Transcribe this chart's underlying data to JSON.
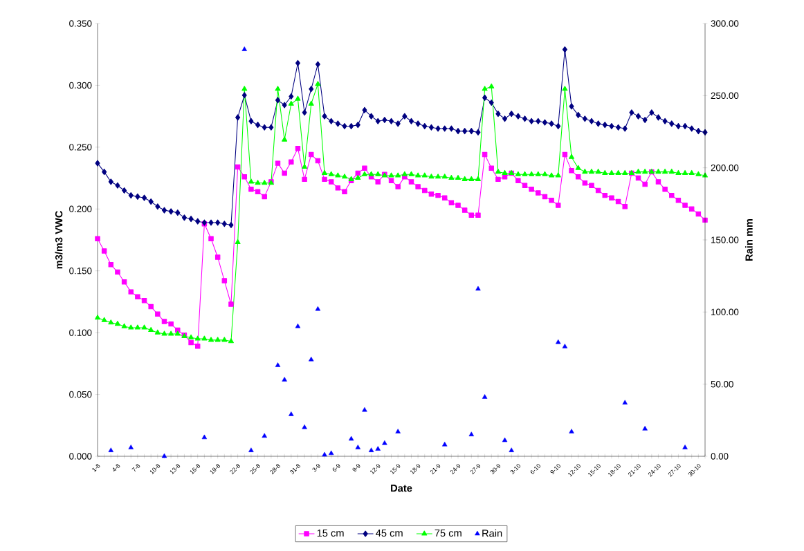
{
  "chart_data": {
    "type": "line",
    "xlabel": "Date",
    "ylabel": "m3/m3 VWC",
    "y2label": "Rain mm",
    "legend": "bottom",
    "categories": [
      "1-8",
      null,
      null,
      "4-8",
      null,
      null,
      "7-8",
      null,
      null,
      "10-8",
      null,
      null,
      "13-8",
      null,
      null,
      "16-8",
      null,
      null,
      "19-8",
      null,
      null,
      "22-8",
      null,
      null,
      "25-8",
      null,
      null,
      "28-8",
      null,
      null,
      "31-8",
      null,
      null,
      "3-9",
      null,
      null,
      "6-9",
      null,
      null,
      "9-9",
      null,
      null,
      "12-9",
      null,
      null,
      "15-9",
      null,
      null,
      "18-9",
      null,
      null,
      "21-9",
      null,
      null,
      "24-9",
      null,
      null,
      "27-9",
      null,
      null,
      "30-9",
      null,
      null,
      "3-10",
      null,
      null,
      "6-10",
      null,
      null,
      "9-10",
      null,
      null,
      "12-10",
      null,
      null,
      "15-10",
      null,
      null,
      "18-10",
      null,
      null,
      "21-10",
      null,
      null,
      "24-10",
      null,
      null,
      "27-10",
      null,
      null,
      "30-10",
      null
    ],
    "ylim": [
      0,
      0.35
    ],
    "yticks": [
      {
        "value": 0,
        "label": "0.000"
      },
      {
        "value": 0.05,
        "label": "0.050"
      },
      {
        "value": 0.1,
        "label": "0.100"
      },
      {
        "value": 0.15,
        "label": "0.150"
      },
      {
        "value": 0.2,
        "label": "0.200"
      },
      {
        "value": 0.25,
        "label": "0.250"
      },
      {
        "value": 0.3,
        "label": "0.300"
      },
      {
        "value": 0.35,
        "label": "0.350"
      }
    ],
    "y2lim": [
      0,
      300
    ],
    "y2ticks": [
      {
        "value": 0,
        "label": "0.00"
      },
      {
        "value": 50,
        "label": "50.00"
      },
      {
        "value": 100,
        "label": "100.00"
      },
      {
        "value": 150,
        "label": "150.00"
      },
      {
        "value": 200,
        "label": "200.00"
      },
      {
        "value": 250,
        "label": "250.00"
      },
      {
        "value": 300,
        "label": "300.00"
      }
    ],
    "series": [
      {
        "name": "15 cm",
        "color": "#ff00ff",
        "marker": "square",
        "values": [
          0.176,
          0.166,
          0.155,
          0.149,
          0.141,
          0.133,
          0.129,
          0.126,
          0.121,
          0.115,
          0.109,
          0.107,
          0.102,
          0.098,
          0.092,
          0.089,
          0.188,
          0.176,
          0.161,
          0.142,
          0.123,
          0.234,
          0.226,
          0.216,
          0.214,
          0.21,
          0.222,
          0.237,
          0.229,
          0.238,
          0.249,
          0.224,
          0.244,
          0.239,
          0.224,
          0.222,
          0.217,
          0.214,
          0.223,
          0.229,
          0.233,
          0.226,
          0.222,
          0.228,
          0.223,
          0.218,
          0.226,
          0.222,
          0.218,
          0.215,
          0.212,
          0.211,
          0.209,
          0.205,
          0.203,
          0.199,
          0.195,
          0.195,
          0.244,
          0.233,
          0.224,
          0.226,
          0.229,
          0.223,
          0.219,
          0.216,
          0.213,
          0.21,
          0.207,
          0.203,
          0.244,
          0.231,
          0.226,
          0.221,
          0.219,
          0.215,
          0.211,
          0.209,
          0.206,
          0.202,
          0.229,
          0.225,
          0.22,
          0.23,
          0.222,
          0.216,
          0.211,
          0.207,
          0.203,
          0.2,
          0.196,
          0.191
        ]
      },
      {
        "name": "45 cm",
        "color": "#000080",
        "marker": "diamond",
        "values": [
          0.237,
          0.23,
          0.222,
          0.219,
          0.215,
          0.211,
          0.21,
          0.209,
          0.206,
          0.202,
          0.199,
          0.198,
          0.197,
          0.193,
          0.192,
          0.19,
          0.189,
          0.189,
          0.189,
          0.188,
          0.187,
          0.274,
          0.292,
          0.271,
          0.268,
          0.266,
          0.266,
          0.288,
          0.284,
          0.291,
          0.318,
          0.278,
          0.297,
          0.317,
          0.275,
          0.271,
          0.269,
          0.267,
          0.267,
          0.268,
          0.28,
          0.275,
          0.271,
          0.272,
          0.271,
          0.269,
          0.275,
          0.271,
          0.269,
          0.267,
          0.266,
          0.265,
          0.265,
          0.265,
          0.263,
          0.263,
          0.263,
          0.262,
          0.29,
          0.286,
          0.277,
          0.273,
          0.277,
          0.275,
          0.273,
          0.271,
          0.271,
          0.27,
          0.269,
          0.267,
          0.329,
          0.283,
          0.276,
          0.273,
          0.271,
          0.269,
          0.268,
          0.267,
          0.266,
          0.265,
          0.278,
          0.275,
          0.272,
          0.278,
          0.274,
          0.271,
          0.269,
          0.267,
          0.267,
          0.265,
          0.263,
          0.262
        ]
      },
      {
        "name": "75 cm",
        "color": "#00ff00",
        "marker": "triangle",
        "values": [
          0.112,
          0.11,
          0.108,
          0.107,
          0.105,
          0.104,
          0.104,
          0.104,
          0.102,
          0.1,
          0.099,
          0.099,
          0.099,
          0.097,
          0.096,
          0.095,
          0.095,
          0.094,
          0.094,
          0.094,
          0.093,
          0.173,
          0.297,
          0.222,
          0.221,
          0.221,
          0.221,
          0.297,
          0.256,
          0.285,
          0.289,
          0.234,
          0.285,
          0.301,
          0.229,
          0.228,
          0.227,
          0.226,
          0.224,
          0.225,
          0.228,
          0.228,
          0.228,
          0.227,
          0.227,
          0.227,
          0.228,
          0.228,
          0.227,
          0.227,
          0.226,
          0.226,
          0.226,
          0.225,
          0.225,
          0.224,
          0.224,
          0.224,
          0.297,
          0.299,
          0.23,
          0.229,
          0.229,
          0.228,
          0.228,
          0.228,
          0.228,
          0.228,
          0.227,
          0.227,
          0.297,
          0.242,
          0.233,
          0.23,
          0.23,
          0.23,
          0.229,
          0.229,
          0.229,
          0.229,
          0.229,
          0.23,
          0.23,
          0.23,
          0.23,
          0.23,
          0.23,
          0.229,
          0.229,
          0.229,
          0.228,
          0.227
        ]
      },
      {
        "name": "Rain",
        "type": "scatter",
        "axis": "y2",
        "color": "#0000ff",
        "marker": "triangle",
        "values": [
          null,
          null,
          4,
          null,
          null,
          6,
          null,
          null,
          null,
          null,
          0,
          null,
          null,
          null,
          null,
          null,
          13,
          null,
          null,
          null,
          null,
          null,
          282,
          4,
          null,
          14,
          null,
          63,
          53,
          29,
          90,
          20,
          67,
          102,
          1,
          2,
          null,
          null,
          12,
          6,
          32,
          4,
          5,
          9,
          null,
          17,
          null,
          null,
          null,
          null,
          null,
          null,
          8,
          null,
          null,
          null,
          15,
          116,
          41,
          null,
          null,
          11,
          4,
          null,
          null,
          null,
          null,
          null,
          null,
          79,
          76,
          17,
          null,
          null,
          null,
          null,
          null,
          null,
          null,
          37,
          null,
          null,
          19,
          null,
          null,
          null,
          null,
          null,
          6,
          null,
          null,
          null
        ]
      }
    ]
  }
}
